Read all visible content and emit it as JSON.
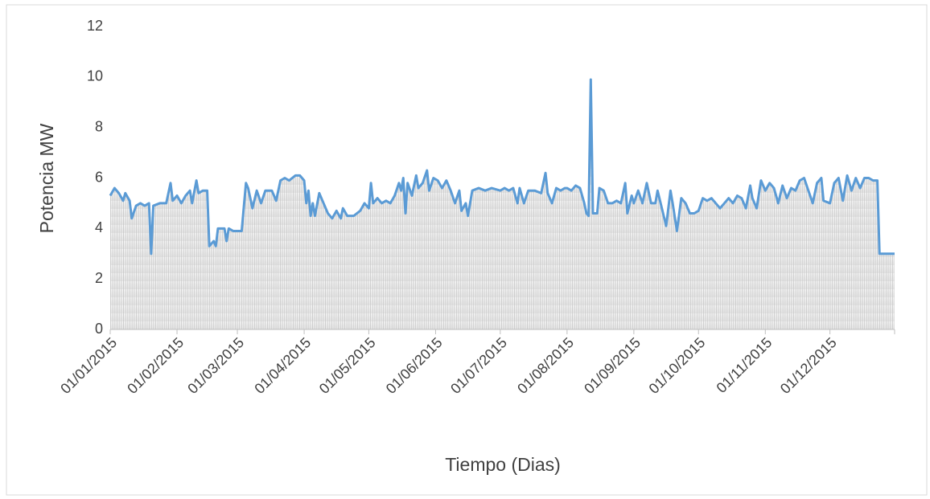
{
  "chart_data": {
    "type": "line",
    "x_label": "Tiempo (Dias)",
    "y_label": "Potencia MW",
    "xlim": [
      "01/01/2015",
      "31/12/2015"
    ],
    "xticks": [
      "01/01/2015",
      "01/02/2015",
      "01/03/2015",
      "01/04/2015",
      "01/05/2015",
      "01/06/2015",
      "01/07/2015",
      "01/08/2015",
      "01/09/2015",
      "01/10/2015",
      "01/11/2015",
      "01/12/2015"
    ],
    "ylim": [
      0,
      12
    ],
    "yticks": [
      0,
      2,
      4,
      6,
      8,
      10,
      12
    ],
    "grid": false,
    "series": [
      {
        "name": "Potencia",
        "color": "#5b9bd5",
        "x": [
          "01/01/2015",
          "03/01/2015",
          "05/01/2015",
          "07/01/2015",
          "08/01/2015",
          "10/01/2015",
          "11/01/2015",
          "13/01/2015",
          "15/01/2015",
          "17/01/2015",
          "19/01/2015",
          "20/01/2015",
          "21/01/2015",
          "24/01/2015",
          "27/01/2015",
          "29/01/2015",
          "30/01/2015",
          "01/02/2015",
          "03/02/2015",
          "05/02/2015",
          "07/02/2015",
          "08/02/2015",
          "10/02/2015",
          "11/02/2015",
          "13/02/2015",
          "15/02/2015",
          "16/02/2015",
          "18/02/2015",
          "19/02/2015",
          "20/02/2015",
          "23/02/2015",
          "24/02/2015",
          "25/02/2015",
          "27/02/2015",
          "01/03/2015",
          "03/03/2015",
          "05/03/2015",
          "06/03/2015",
          "08/03/2015",
          "10/03/2015",
          "12/03/2015",
          "14/03/2015",
          "17/03/2015",
          "19/03/2015",
          "21/03/2015",
          "23/03/2015",
          "25/03/2015",
          "28/03/2015",
          "30/03/2015",
          "01/04/2015",
          "02/04/2015",
          "03/04/2015",
          "04/04/2015",
          "05/04/2015",
          "06/04/2015",
          "08/04/2015",
          "10/04/2015",
          "12/04/2015",
          "14/04/2015",
          "16/04/2015",
          "18/04/2015",
          "19/04/2015",
          "21/04/2015",
          "24/04/2015",
          "27/04/2015",
          "29/04/2015",
          "01/05/2015",
          "02/05/2015",
          "03/05/2015",
          "05/05/2015",
          "07/05/2015",
          "09/05/2015",
          "11/05/2015",
          "13/05/2015",
          "15/05/2015",
          "16/05/2015",
          "17/05/2015",
          "18/05/2015",
          "19/05/2015",
          "21/05/2015",
          "23/05/2015",
          "24/05/2015",
          "26/05/2015",
          "28/05/2015",
          "29/05/2015",
          "31/05/2015",
          "02/06/2015",
          "04/06/2015",
          "06/06/2015",
          "08/06/2015",
          "10/06/2015",
          "12/06/2015",
          "13/06/2015",
          "15/06/2015",
          "16/06/2015",
          "18/06/2015",
          "21/06/2015",
          "24/06/2015",
          "27/06/2015",
          "01/07/2015",
          "03/07/2015",
          "05/07/2015",
          "07/07/2015",
          "09/07/2015",
          "10/07/2015",
          "12/07/2015",
          "14/07/2015",
          "17/07/2015",
          "20/07/2015",
          "22/07/2015",
          "23/07/2015",
          "25/07/2015",
          "27/07/2015",
          "29/07/2015",
          "31/07/2015",
          "01/08/2015",
          "03/08/2015",
          "05/08/2015",
          "07/08/2015",
          "09/08/2015",
          "10/08/2015",
          "11/08/2015",
          "12/08/2015",
          "13/08/2015",
          "15/08/2015",
          "16/08/2015",
          "18/08/2015",
          "20/08/2015",
          "22/08/2015",
          "24/08/2015",
          "26/08/2015",
          "28/08/2015",
          "29/08/2015",
          "31/08/2015",
          "01/09/2015",
          "03/09/2015",
          "05/09/2015",
          "07/09/2015",
          "09/09/2015",
          "11/09/2015",
          "12/09/2015",
          "14/09/2015",
          "16/09/2015",
          "18/09/2015",
          "19/09/2015",
          "21/09/2015",
          "23/09/2015",
          "25/09/2015",
          "27/09/2015",
          "29/09/2015",
          "01/10/2015",
          "03/10/2015",
          "05/10/2015",
          "07/10/2015",
          "09/10/2015",
          "11/10/2015",
          "13/10/2015",
          "15/10/2015",
          "17/10/2015",
          "19/10/2015",
          "21/10/2015",
          "23/10/2015",
          "25/10/2015",
          "26/10/2015",
          "28/10/2015",
          "30/10/2015",
          "01/11/2015",
          "03/11/2015",
          "05/11/2015",
          "07/11/2015",
          "09/11/2015",
          "11/11/2015",
          "13/11/2015",
          "15/11/2015",
          "17/11/2015",
          "19/11/2015",
          "21/11/2015",
          "23/11/2015",
          "25/11/2015",
          "27/11/2015",
          "28/11/2015",
          "01/12/2015",
          "03/12/2015",
          "05/12/2015",
          "07/12/2015",
          "09/12/2015",
          "11/12/2015",
          "13/12/2015",
          "15/12/2015",
          "17/12/2015",
          "19/12/2015",
          "21/12/2015",
          "23/12/2015",
          "24/12/2015",
          "31/12/2015"
        ],
        "values": [
          5.3,
          5.6,
          5.4,
          5.1,
          5.4,
          5.1,
          4.4,
          4.9,
          5.0,
          4.9,
          5.0,
          3.0,
          4.9,
          5.0,
          5.0,
          5.8,
          5.1,
          5.3,
          5.0,
          5.3,
          5.5,
          5.0,
          5.9,
          5.4,
          5.5,
          5.5,
          3.3,
          3.5,
          3.3,
          4.0,
          4.0,
          3.5,
          4.0,
          3.9,
          3.9,
          3.9,
          5.8,
          5.6,
          4.8,
          5.5,
          5.0,
          5.5,
          5.5,
          5.1,
          5.9,
          6.0,
          5.9,
          6.1,
          6.1,
          5.9,
          5.0,
          5.5,
          4.5,
          5.0,
          4.5,
          5.4,
          5.0,
          4.6,
          4.4,
          4.7,
          4.4,
          4.8,
          4.5,
          4.5,
          4.7,
          5.0,
          4.8,
          5.8,
          5.0,
          5.2,
          5.0,
          5.1,
          5.0,
          5.3,
          5.8,
          5.5,
          6.0,
          4.6,
          5.8,
          5.3,
          6.1,
          5.6,
          5.8,
          6.3,
          5.5,
          6.0,
          5.9,
          5.6,
          5.9,
          5.5,
          5.0,
          5.5,
          4.7,
          5.0,
          4.5,
          5.5,
          5.6,
          5.5,
          5.6,
          5.5,
          5.6,
          5.5,
          5.6,
          5.0,
          5.6,
          5.0,
          5.5,
          5.5,
          5.4,
          6.2,
          5.4,
          5.0,
          5.6,
          5.5,
          5.6,
          5.6,
          5.5,
          5.7,
          5.6,
          5.0,
          4.6,
          4.5,
          9.9,
          4.6,
          4.6,
          5.6,
          5.5,
          5.0,
          5.0,
          5.1,
          5.0,
          5.8,
          4.6,
          5.3,
          5.0,
          5.5,
          5.0,
          5.8,
          5.0,
          5.0,
          5.5,
          4.8,
          4.1,
          5.5,
          5.0,
          3.9,
          5.2,
          5.0,
          4.6,
          4.6,
          4.7,
          5.2,
          5.1,
          5.2,
          5.0,
          4.8,
          5.0,
          5.2,
          5.0,
          5.3,
          5.2,
          4.8,
          5.7,
          5.2,
          4.8,
          5.9,
          5.5,
          5.8,
          5.6,
          5.0,
          5.7,
          5.2,
          5.6,
          5.5,
          5.9,
          6.0,
          5.5,
          5.0,
          5.8,
          6.0,
          5.1,
          5.0,
          5.8,
          6.0,
          5.1,
          6.1,
          5.5,
          6.0,
          5.6,
          6.0,
          6.0,
          5.9,
          5.9,
          3.0,
          3.0
        ]
      }
    ]
  }
}
